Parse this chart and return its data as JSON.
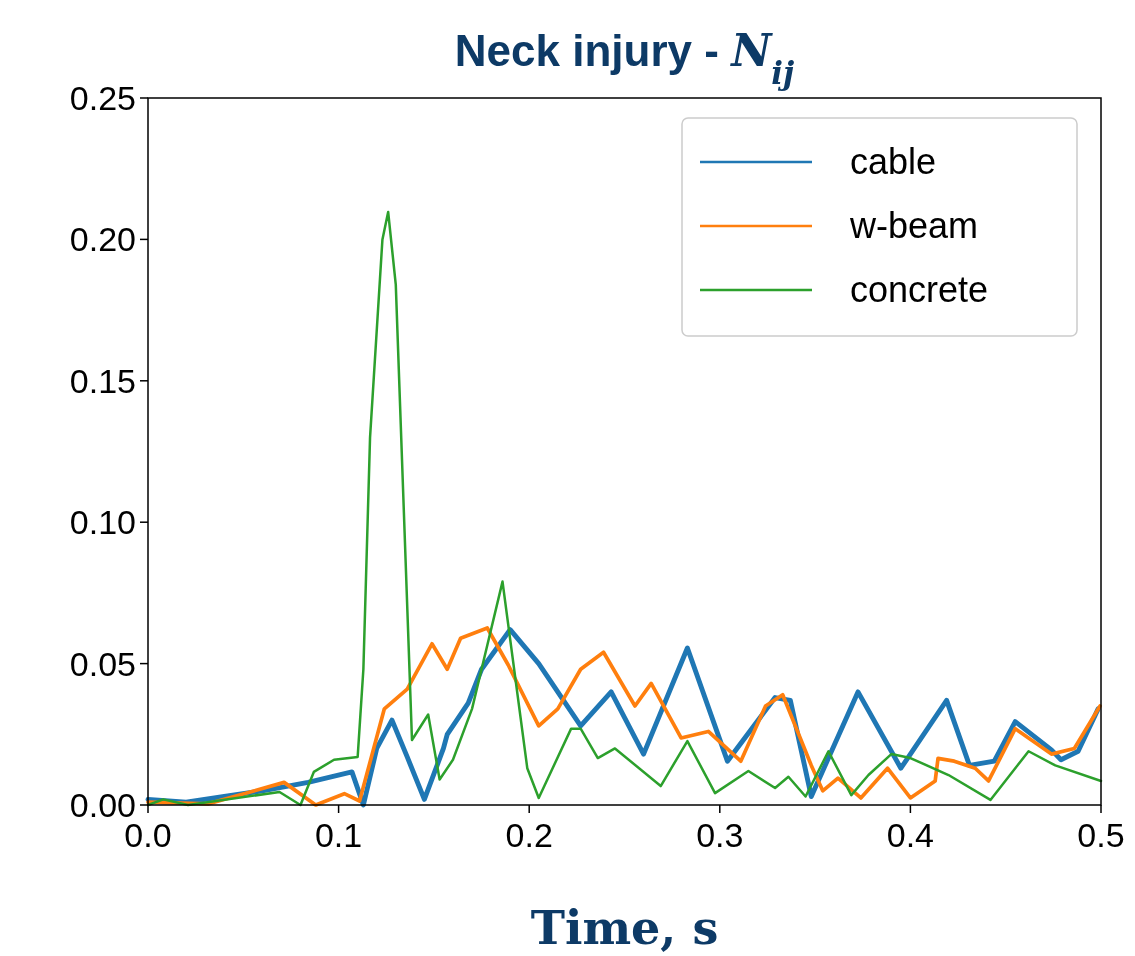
{
  "chart_data": {
    "type": "line",
    "title": "Neck injury - N$_{ij}$",
    "xlabel": "Time, s",
    "xlim": [
      0,
      0.5
    ],
    "xticks": [
      {
        "value": 0,
        "label": "0.0"
      },
      0.1,
      0.2,
      0.3,
      0.4,
      0.5
    ],
    "ylim": [
      0,
      0.25
    ],
    "yticks": [
      {
        "value": 0,
        "label": "0.00"
      },
      {
        "value": 0.05,
        "label": "0.05"
      },
      {
        "value": 0.1,
        "label": "0.10"
      },
      {
        "value": 0.15,
        "label": "0.15"
      },
      {
        "value": 0.2,
        "label": "0.20"
      },
      {
        "value": 0.25,
        "label": "0.25"
      }
    ],
    "grid": false,
    "legend": "top right",
    "line_style": "solid",
    "marker": "none",
    "series": [
      {
        "name": "cable",
        "color": "#1f77b4",
        "x": [
          0,
          0.02,
          0.04,
          0.06,
          0.084,
          0.107,
          0.113,
          0.12,
          0.128,
          0.136,
          0.145,
          0.155,
          0.157,
          0.168,
          0.175,
          0.19,
          0.205,
          0.227,
          0.243,
          0.26,
          0.283,
          0.304,
          0.329,
          0.337,
          0.348,
          0.3725,
          0.395,
          0.419,
          0.431,
          0.444,
          0.455,
          0.474,
          0.479,
          0.488,
          0.4985
        ],
        "values": [
          0.002,
          0.001,
          0.003,
          0.005,
          0.008,
          0.0117,
          0,
          0.02,
          0.03,
          0.017,
          0.002,
          0.02,
          0.025,
          0.036,
          0.048,
          0.062,
          0.05,
          0.028,
          0.04,
          0.018,
          0.0555,
          0.0155,
          0.038,
          0.037,
          0.003,
          0.04,
          0.013,
          0.037,
          0.014,
          0.0155,
          0.0295,
          0.0195,
          0.016,
          0.019,
          0.034
        ]
      },
      {
        "name": "w-beam",
        "color": "#ff7f0e",
        "x": [
          0,
          0.0315,
          0.0714,
          0.088,
          0.103,
          0.111,
          0.124,
          0.136,
          0.149,
          0.157,
          0.164,
          0.178,
          0.189,
          0.205,
          0.215,
          0.227,
          0.239,
          0.2555,
          0.264,
          0.2797,
          0.294,
          0.311,
          0.324,
          0.333,
          0.348,
          0.354,
          0.362,
          0.374,
          0.388,
          0.4,
          0.413,
          0.4145,
          0.423,
          0.434,
          0.441,
          0.455,
          0.474,
          0.486,
          0.4995
        ],
        "values": [
          0.001,
          0.0004,
          0.008,
          0,
          0.004,
          0.0014,
          0.034,
          0.041,
          0.057,
          0.048,
          0.059,
          0.0626,
          0.0495,
          0.028,
          0.034,
          0.048,
          0.054,
          0.035,
          0.043,
          0.0237,
          0.026,
          0.0155,
          0.035,
          0.039,
          0.014,
          0.005,
          0.0095,
          0.0025,
          0.013,
          0.0025,
          0.0085,
          0.0165,
          0.0155,
          0.013,
          0.0085,
          0.027,
          0.018,
          0.02,
          0.035
        ]
      },
      {
        "name": "concrete",
        "color": "#2ca02c",
        "x": [
          0,
          0.008,
          0.021,
          0.069,
          0.08,
          0.087,
          0.0976,
          0.11,
          0.113,
          0.1165,
          0.123,
          0.126,
          0.13,
          0.1385,
          0.147,
          0.153,
          0.16,
          0.17,
          0.175,
          0.186,
          0.199,
          0.205,
          0.222,
          0.227,
          0.236,
          0.245,
          0.269,
          0.283,
          0.2975,
          0.315,
          0.329,
          0.336,
          0.345,
          0.357,
          0.369,
          0.378,
          0.39,
          0.4,
          0.42,
          0.442,
          0.462,
          0.476,
          0.5
        ],
        "values": [
          0,
          0.002,
          0,
          0.0046,
          0,
          0.0117,
          0.016,
          0.017,
          0.048,
          0.13,
          0.2,
          0.2097,
          0.184,
          0.023,
          0.032,
          0.009,
          0.016,
          0.034,
          0.048,
          0.079,
          0.013,
          0.0025,
          0.027,
          0.027,
          0.0166,
          0.02,
          0.0067,
          0.0226,
          0.0042,
          0.012,
          0.006,
          0.01,
          0.003,
          0.019,
          0.0035,
          0.0106,
          0.018,
          0.0166,
          0.0106,
          0.0018,
          0.019,
          0.014,
          0.0085
        ]
      }
    ]
  }
}
